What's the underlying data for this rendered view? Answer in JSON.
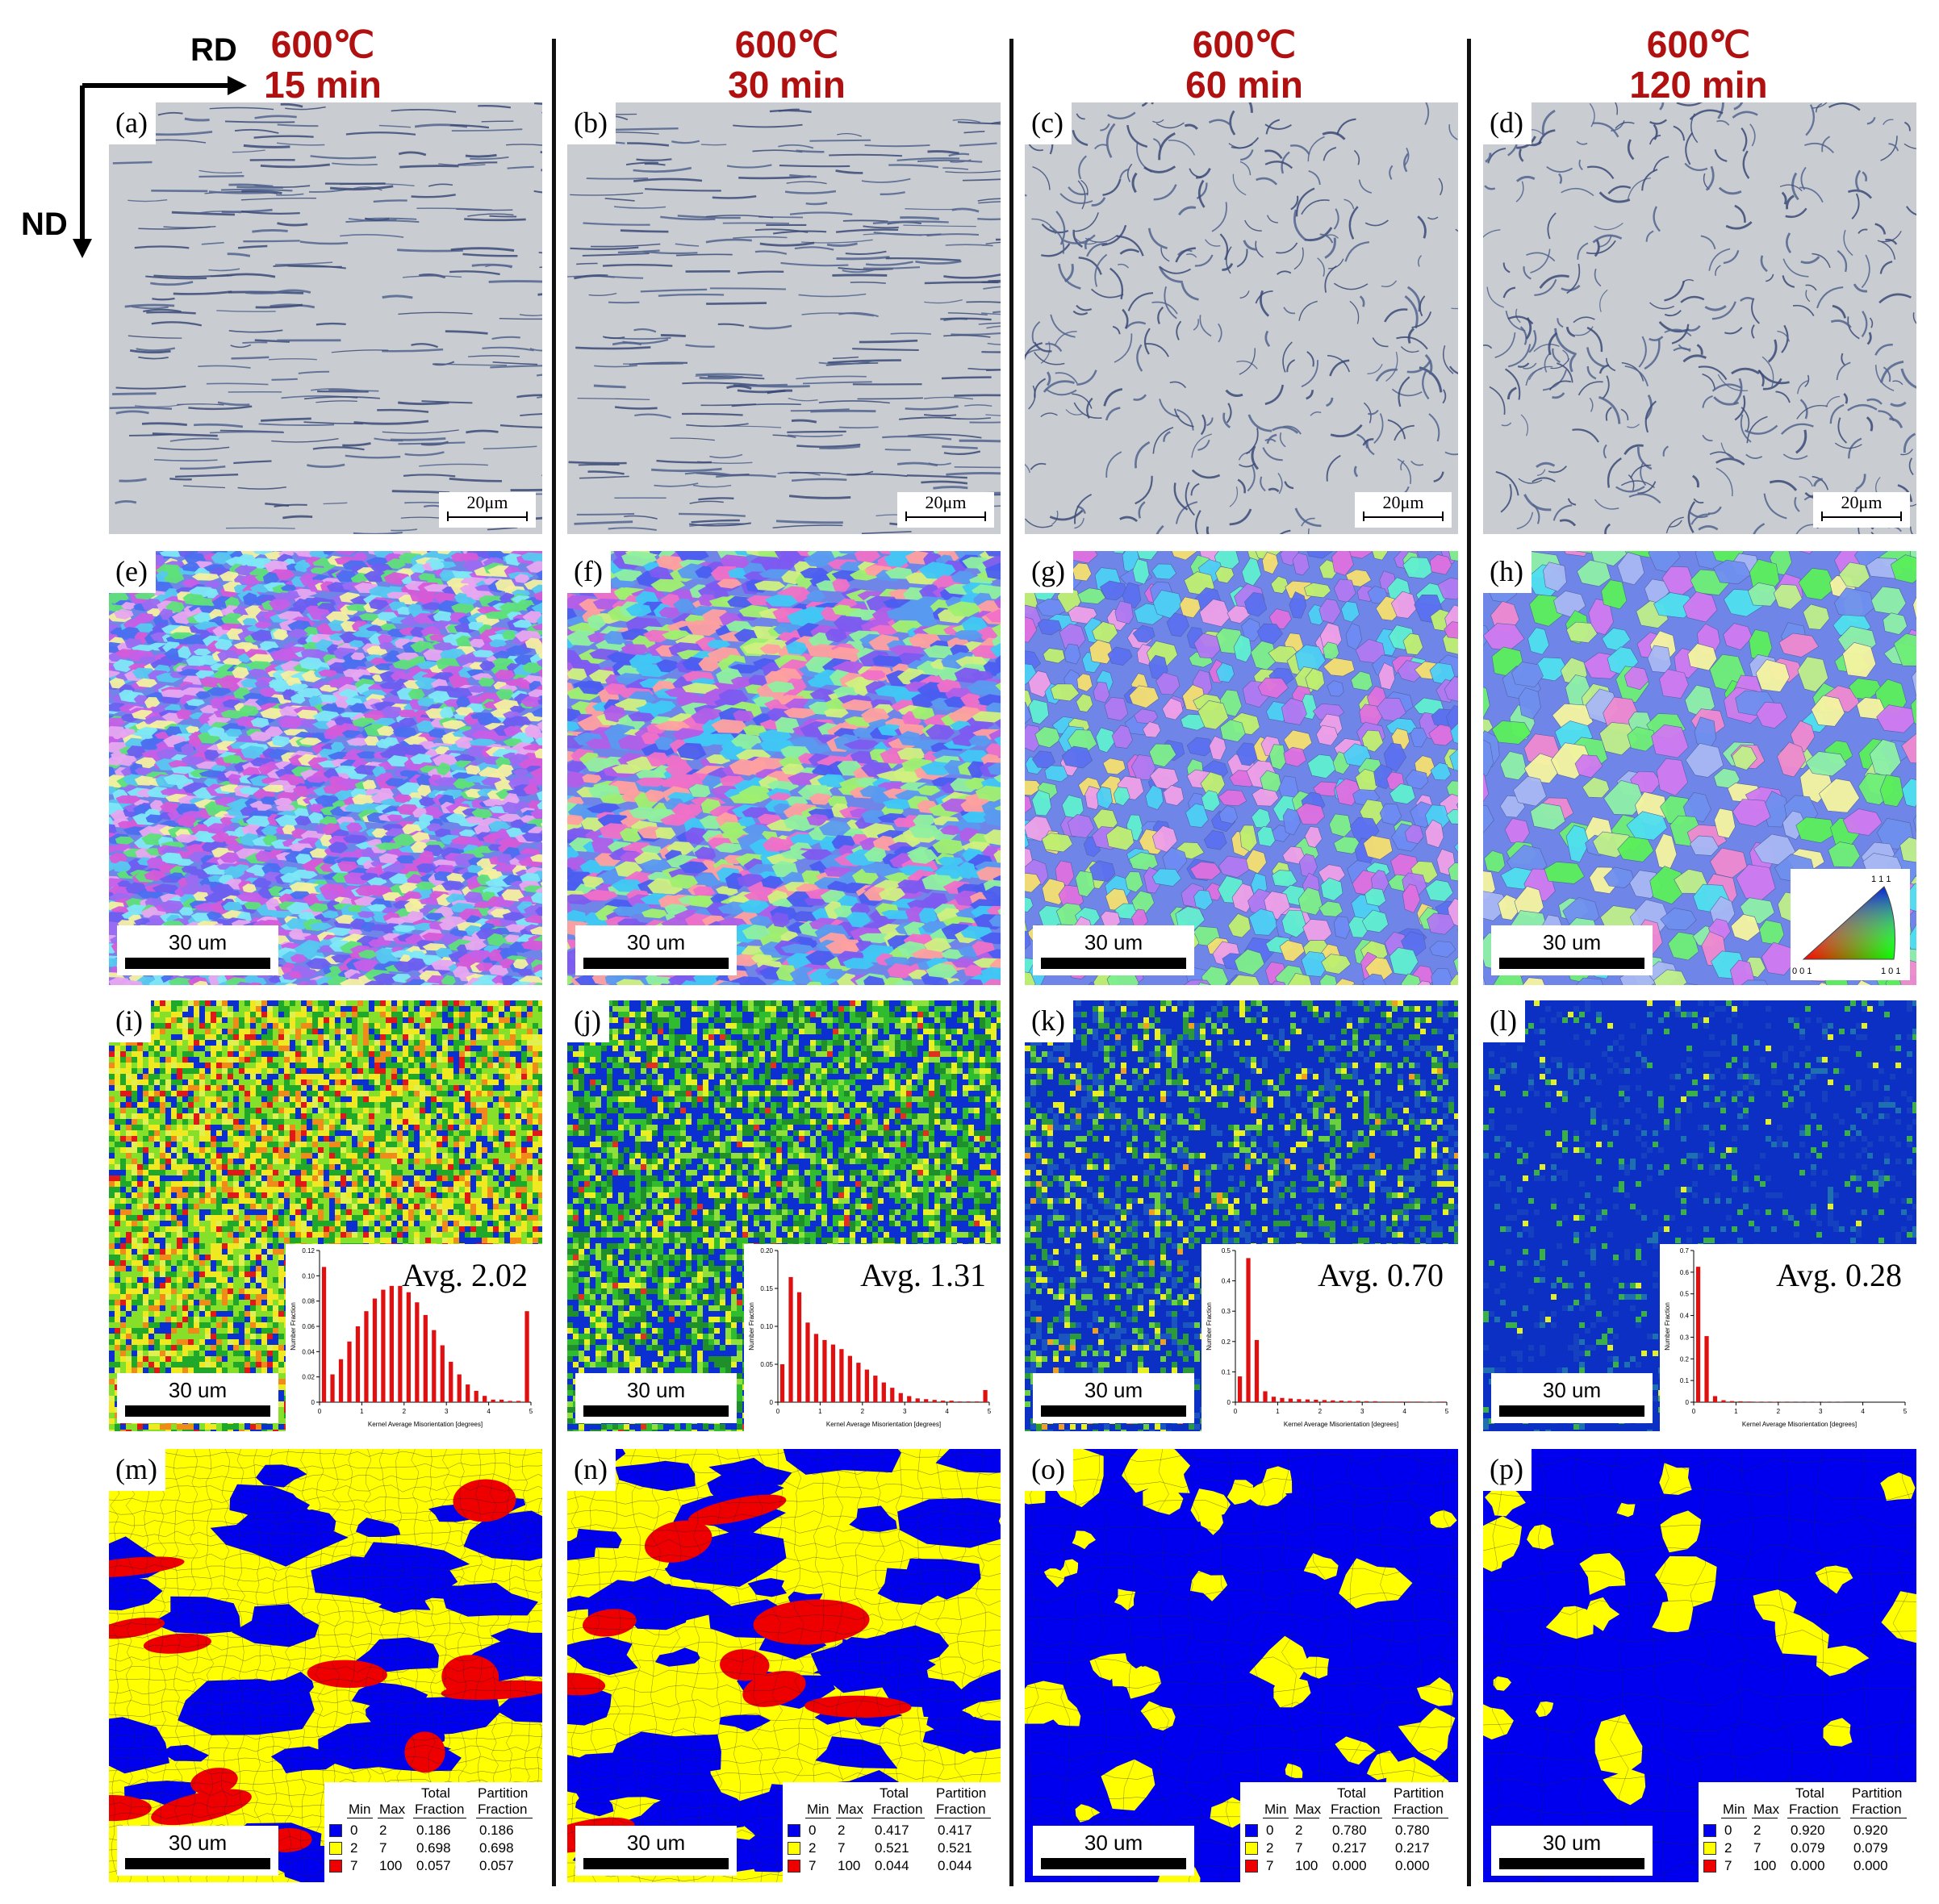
{
  "axes": {
    "rd": "RD",
    "nd": "ND"
  },
  "columns": [
    {
      "temp": "600℃",
      "time": "15 min"
    },
    {
      "temp": "600℃",
      "time": "30 min"
    },
    {
      "temp": "600℃",
      "time": "60 min"
    },
    {
      "temp": "600℃",
      "time": "120 min"
    }
  ],
  "optical_labels": [
    "(a)",
    "(b)",
    "(c)",
    "(d)"
  ],
  "optical_scale": "20μm",
  "ipf_labels": [
    "(e)",
    "(f)",
    "(g)",
    "(h)"
  ],
  "kam_labels": [
    "(i)",
    "(j)",
    "(k)",
    "(l)"
  ],
  "partition_labels": [
    "(m)",
    "(n)",
    "(o)",
    "(p)"
  ],
  "map_scale": "30 um",
  "ipf_triangle": {
    "top": "1 1 1",
    "left": "0 0 1",
    "right": "1 0 1"
  },
  "kam": {
    "x_label": "Kernel Average Misorientation [degrees]",
    "y_label": "Number Fraction",
    "x_ticks": [
      "0",
      "1",
      "2",
      "3",
      "4",
      "5"
    ],
    "panels": [
      {
        "avg": "Avg. 2.02",
        "y_ticks": [
          "0",
          "0.02",
          "0.04",
          "0.06",
          "0.08",
          "0.10",
          "0.12"
        ],
        "ymax": 0.12,
        "values": [
          0.107,
          0.022,
          0.034,
          0.048,
          0.06,
          0.072,
          0.082,
          0.089,
          0.092,
          0.092,
          0.087,
          0.079,
          0.069,
          0.057,
          0.045,
          0.032,
          0.022,
          0.014,
          0.009,
          0.005,
          0.002,
          0.002,
          0.001,
          0.001,
          0.072
        ]
      },
      {
        "avg": "Avg. 1.31",
        "y_ticks": [
          "0",
          "0.05",
          "0.10",
          "0.15",
          "0.20"
        ],
        "ymax": 0.2,
        "values": [
          0.05,
          0.165,
          0.145,
          0.105,
          0.09,
          0.082,
          0.076,
          0.07,
          0.061,
          0.052,
          0.043,
          0.035,
          0.026,
          0.019,
          0.012,
          0.008,
          0.005,
          0.004,
          0.003,
          0.002,
          0.002,
          0.001,
          0.001,
          0.001,
          0.016
        ]
      },
      {
        "avg": "Avg. 0.70",
        "y_ticks": [
          "0",
          "0.1",
          "0.2",
          "0.3",
          "0.4",
          "0.5"
        ],
        "ymax": 0.5,
        "values": [
          0.085,
          0.475,
          0.205,
          0.036,
          0.018,
          0.014,
          0.012,
          0.01,
          0.009,
          0.008,
          0.007,
          0.006,
          0.005,
          0.004,
          0.004,
          0.003,
          0.003,
          0.002,
          0.002,
          0.002,
          0.002,
          0.002,
          0.001,
          0.001,
          0.002
        ]
      },
      {
        "avg": "Avg. 0.28",
        "y_ticks": [
          "0",
          "0.1",
          "0.2",
          "0.3",
          "0.4",
          "0.5",
          "0.6",
          "0.7"
        ],
        "ymax": 0.7,
        "values": [
          0.625,
          0.305,
          0.028,
          0.009,
          0.005,
          0.004,
          0.003,
          0.002,
          0.002,
          0.002,
          0.001,
          0.001,
          0.001,
          0.001,
          0.001,
          0.001,
          0.001,
          0.001,
          0.0,
          0.0,
          0.0,
          0.0,
          0.0,
          0.0,
          0.0
        ]
      }
    ]
  },
  "partition": {
    "headers": {
      "min": "Min",
      "max": "Max",
      "total1": "Total",
      "total2": "Fraction",
      "part1": "Partition",
      "part2": "Fraction"
    },
    "colors": [
      "#0000ee",
      "#ffff00",
      "#ee0000"
    ],
    "panels": [
      {
        "rows": [
          [
            "0",
            "2",
            "0.186",
            "0.186"
          ],
          [
            "2",
            "7",
            "0.698",
            "0.698"
          ],
          [
            "7",
            "100",
            "0.057",
            "0.057"
          ]
        ]
      },
      {
        "rows": [
          [
            "0",
            "2",
            "0.417",
            "0.417"
          ],
          [
            "2",
            "7",
            "0.521",
            "0.521"
          ],
          [
            "7",
            "100",
            "0.044",
            "0.044"
          ]
        ]
      },
      {
        "rows": [
          [
            "0",
            "2",
            "0.780",
            "0.780"
          ],
          [
            "2",
            "7",
            "0.217",
            "0.217"
          ],
          [
            "7",
            "100",
            "0.000",
            "0.000"
          ]
        ]
      },
      {
        "rows": [
          [
            "0",
            "2",
            "0.920",
            "0.920"
          ],
          [
            "2",
            "7",
            "0.079",
            "0.079"
          ],
          [
            "7",
            "100",
            "0.000",
            "0.000"
          ]
        ]
      }
    ]
  },
  "colors": {
    "header_red": "#b01010",
    "optical_bg": "#c9ccd0",
    "kam_blue": "#0c2fc4",
    "kam_green": "#38c83a",
    "kam_yellow": "#e8ef22",
    "hist_bar": "#e01010",
    "part_blue": "#0000ee",
    "part_yellow": "#ffff00",
    "part_red": "#ee0000"
  }
}
